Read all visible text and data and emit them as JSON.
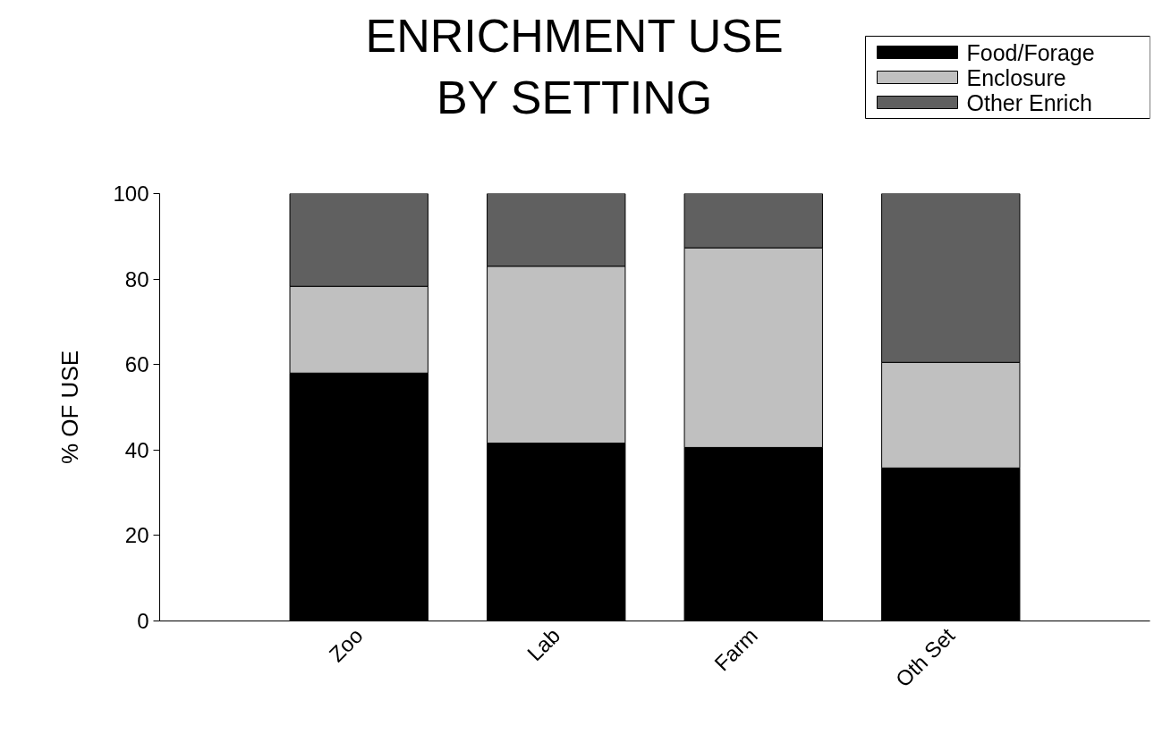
{
  "chart_data": {
    "type": "bar",
    "title": "ENRICHMENT USE\nBY SETTING",
    "ylabel": "% OF USE",
    "categories": [
      "Zoo",
      "Lab",
      "Farm",
      "Oth Set"
    ],
    "stacked": true,
    "series": [
      {
        "name": "Food/Forage",
        "color": "#000000",
        "values": [
          58,
          41.6,
          40.6,
          35.8
        ]
      },
      {
        "name": "Enclosure",
        "color": "#c0c0c0",
        "values": [
          20.3,
          41.4,
          46.7,
          24.7
        ]
      },
      {
        "name": "Other Enrich",
        "color": "#606060",
        "values": [
          21.7,
          17,
          12.7,
          39.5
        ]
      }
    ],
    "ylim": [
      0,
      100
    ],
    "yticks": [
      0,
      20,
      40,
      60,
      80,
      100
    ],
    "grid": false,
    "legend": "top right"
  }
}
